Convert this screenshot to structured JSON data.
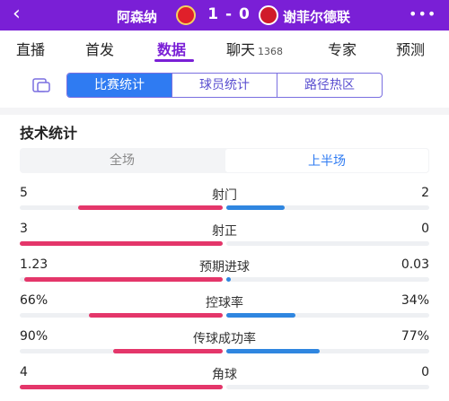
{
  "header": {
    "back_icon": "back-arrow-icon",
    "home_team": "阿森纳",
    "away_team": "谢菲尔德联",
    "score": "1 - 0",
    "more_icon": "more-dots-icon"
  },
  "tabs": [
    {
      "label": "直播"
    },
    {
      "label": "首发"
    },
    {
      "label": "数据"
    },
    {
      "label": "聊天",
      "count": "1368"
    },
    {
      "label": "专家"
    },
    {
      "label": "预测"
    }
  ],
  "subtabs": [
    {
      "label": "比赛统计"
    },
    {
      "label": "球员统计"
    },
    {
      "label": "路径热区"
    }
  ],
  "section_title": "技术统计",
  "periods": [
    {
      "label": "全场"
    },
    {
      "label": "上半场"
    }
  ],
  "stats": [
    {
      "label": "射门",
      "home": "5",
      "away": "2",
      "home_share": 0.714,
      "away_share": 0.286
    },
    {
      "label": "射正",
      "home": "3",
      "away": "0",
      "home_share": 1.0,
      "away_share": 0.0
    },
    {
      "label": "预期进球",
      "home": "1.23",
      "away": "0.03",
      "home_share": 0.976,
      "away_share": 0.024
    },
    {
      "label": "控球率",
      "home": "66%",
      "away": "34%",
      "home_share": 0.66,
      "away_share": 0.34
    },
    {
      "label": "传球成功率",
      "home": "90%",
      "away": "77%",
      "home_share": 0.54,
      "away_share": 0.46
    },
    {
      "label": "角球",
      "home": "4",
      "away": "0",
      "home_share": 1.0,
      "away_share": 0.0
    }
  ],
  "colors": {
    "brand": "#7a1fd6",
    "home_bar": "#e4366a",
    "away_bar": "#2f86e0",
    "active_tab": "#2f7bf2"
  }
}
